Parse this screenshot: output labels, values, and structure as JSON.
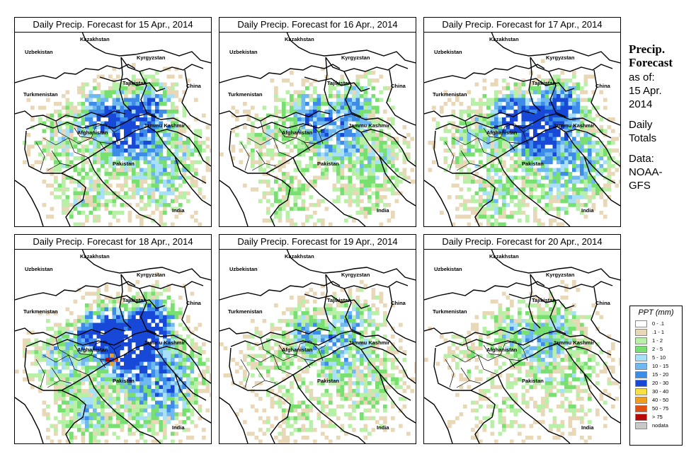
{
  "panels": [
    {
      "title": "Daily Precip. Forecast for  15 Apr., 2014",
      "seed": 11,
      "wet": 1.0
    },
    {
      "title": "Daily Precip. Forecast for  16 Apr., 2014",
      "seed": 23,
      "wet": 0.8
    },
    {
      "title": "Daily Precip. Forecast for  17 Apr., 2014",
      "seed": 37,
      "wet": 1.1
    },
    {
      "title": "Daily Precip. Forecast for  18 Apr., 2014",
      "seed": 41,
      "wet": 1.3
    },
    {
      "title": "Daily Precip. Forecast for  19 Apr., 2014",
      "seed": 53,
      "wet": 0.7
    },
    {
      "title": "Daily Precip. Forecast for  20 Apr., 2014",
      "seed": 67,
      "wet": 0.6
    }
  ],
  "map_labels": {
    "kazakhstan": "Kazakhstan",
    "uzbekistan": "Uzbekistan",
    "kyrgyzstan": "Kyrgyzstan",
    "tajikistan": "Tajikistan",
    "turkmenistan": "Turkmenistan",
    "china": "China",
    "afghanistan": "Afghanistan",
    "jammu_kashmir": "Jammu Kashmir",
    "pakistan": "Pakistan",
    "india": "India"
  },
  "sidebar": {
    "title": "Precip. Forecast",
    "as_of_label": "as of:",
    "date_line1": "15 Apr.",
    "date_line2": "2014",
    "totals_line1": "Daily",
    "totals_line2": "Totals",
    "data_line1": "Data:",
    "data_line2": "NOAA-",
    "data_line3": "GFS"
  },
  "legend": {
    "title": "PPT (mm)",
    "items": [
      {
        "label": "0 - .1",
        "color": "#ffffff"
      },
      {
        "label": ".1 - 1",
        "color": "#e8d8b8"
      },
      {
        "label": "1 - 2",
        "color": "#b8f0a8"
      },
      {
        "label": "2 - 5",
        "color": "#78e070"
      },
      {
        "label": "5 - 10",
        "color": "#a8e0f8"
      },
      {
        "label": "10 - 15",
        "color": "#70b8f0"
      },
      {
        "label": "15 - 20",
        "color": "#3c8ce8"
      },
      {
        "label": "20 - 30",
        "color": "#1848d8"
      },
      {
        "label": "30 - 40",
        "color": "#f8e040"
      },
      {
        "label": "40 - 50",
        "color": "#f0a020"
      },
      {
        "label": "50 - 75",
        "color": "#e05010"
      },
      {
        "label": "> 75",
        "color": "#b80808"
      },
      {
        "label": "nodata",
        "color": "#c8c8c8"
      }
    ]
  }
}
